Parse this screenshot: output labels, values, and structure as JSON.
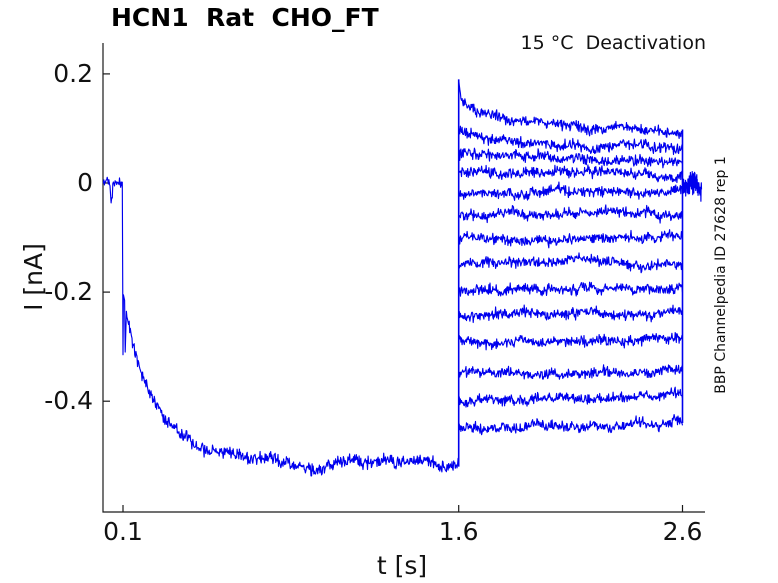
{
  "chart_data": {
    "type": "line",
    "title": "HCN1  Rat  CHO_FT",
    "subtitle": "15 °C  Deactivation",
    "watermark": "BBP Channelpedia ID 27628 rep 1",
    "xlabel": "t [s]",
    "ylabel": "I [nA]",
    "x_ticks": [
      0.1,
      1.6,
      2.6
    ],
    "x_tick_labels": [
      "0.1",
      "1.6",
      "2.6"
    ],
    "y_ticks": [
      0.2,
      0,
      -0.2,
      -0.4
    ],
    "y_tick_labels": [
      "0.2",
      "0",
      "-0.2",
      "-0.4"
    ],
    "x_range": [
      0.01,
      2.7
    ],
    "y_range": [
      -0.6,
      0.26
    ],
    "grid": false,
    "legend": "none",
    "line_color": "#0000ee",
    "axis_color": "#1a1a1a",
    "units": {
      "x": "s",
      "y": "nA"
    },
    "protocol": {
      "baseline": {
        "t_start": 0.012,
        "t_end": 0.0995,
        "level": 0,
        "noise": 0.008,
        "artifact": {
          "t_start": 0.042,
          "t_end": 0.053,
          "level": -0.033
        }
      },
      "activation": {
        "t_start": 0.1,
        "t_end": 1.6,
        "spike_min": -0.315,
        "recover_level": -0.21,
        "second_spike_t": 0.11,
        "second_spike_min": -0.31,
        "post_spike_level": -0.24,
        "steady_level": -0.515,
        "tau": 0.15,
        "noise": 0.011
      },
      "step_time": 1.6,
      "step_top": 0.19,
      "step_bottom": -0.52,
      "trace_noise": 0.0085,
      "deactivation_traces": [
        {
          "v_fast": 0.19,
          "tau_fast": 0.012,
          "v_init": 0.142,
          "v_final": 0.098,
          "tau": 0.28
        },
        {
          "v_init": 0.094,
          "v_final": 0.064,
          "tau": 0.2
        },
        {
          "v_init": 0.056,
          "v_final": 0.042,
          "tau": 0.25
        },
        {
          "v_init": 0.022,
          "v_final": 0.02,
          "tau": 0.3
        },
        {
          "v_init": -0.02,
          "v_final": -0.016,
          "tau": 0.3
        },
        {
          "v_init": -0.06,
          "v_final": -0.054,
          "tau": 0.3
        },
        {
          "v_init": -0.106,
          "v_final": -0.1,
          "tau": 0.3
        },
        {
          "v_init": -0.15,
          "v_final": -0.145,
          "tau": 0.3
        },
        {
          "v_init": -0.198,
          "v_final": -0.192,
          "tau": 0.3
        },
        {
          "v_init": -0.242,
          "v_final": -0.237,
          "tau": 0.3
        },
        {
          "v_init": -0.29,
          "v_final": -0.286,
          "tau": 0.3
        },
        {
          "v_init": -0.35,
          "v_final": -0.344,
          "tau": 0.3
        },
        {
          "v_init": -0.4,
          "v_final": -0.39,
          "tau": 0.3
        },
        {
          "v_init": -0.452,
          "v_final": -0.44,
          "tau": 0.3
        }
      ],
      "end_time": 2.6,
      "end_top": 0.098,
      "end_bottom": -0.44,
      "tail": {
        "t_start": 2.6,
        "t_end": 2.685,
        "level": -0.012,
        "noise": 0.02
      }
    }
  }
}
